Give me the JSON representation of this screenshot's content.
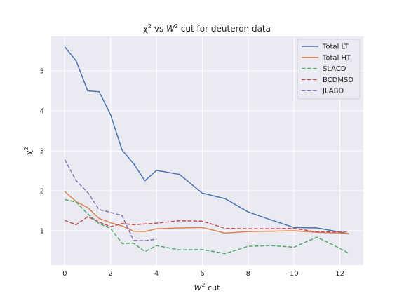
{
  "chart_data": {
    "type": "line",
    "title_parts": [
      "χ",
      "2",
      " vs ",
      "W",
      "2",
      " cut for deuteron data"
    ],
    "xlabel_parts": [
      "W",
      "2",
      " cut"
    ],
    "ylabel_parts": [
      "χ",
      "2"
    ],
    "xlim": [
      -0.62,
      13.02
    ],
    "ylim": [
      0.14,
      5.86
    ],
    "xticks": [
      0,
      2,
      4,
      6,
      8,
      10,
      12
    ],
    "yticks": [
      1,
      2,
      3,
      4,
      5
    ],
    "grid": true,
    "legend_position": "top-right",
    "series": [
      {
        "name": "Total LT",
        "color": "#4c72b0",
        "dash": "solid",
        "x": [
          0,
          0.5,
          1,
          1.5,
          2,
          2.5,
          3,
          3.5,
          4,
          5,
          6,
          7,
          8,
          9,
          10,
          11,
          12,
          12.4
        ],
        "y": [
          5.6,
          5.25,
          4.5,
          4.48,
          3.9,
          3.02,
          2.68,
          2.25,
          2.51,
          2.41,
          1.94,
          1.8,
          1.47,
          1.27,
          1.08,
          1.07,
          0.97,
          0.92
        ]
      },
      {
        "name": "Total HT",
        "color": "#dd8452",
        "dash": "solid",
        "x": [
          0,
          0.5,
          1,
          1.5,
          2,
          2.5,
          3,
          3.5,
          4,
          5,
          6,
          7,
          8,
          9,
          10,
          11,
          12,
          12.4
        ],
        "y": [
          1.98,
          1.73,
          1.58,
          1.31,
          1.2,
          1.12,
          0.99,
          0.98,
          1.05,
          1.07,
          1.08,
          0.94,
          0.98,
          0.99,
          1.0,
          0.96,
          0.94,
          0.92
        ]
      },
      {
        "name": "SLACD",
        "color": "#55a868",
        "dash": "dashed",
        "x": [
          0,
          0.5,
          1,
          1.5,
          2,
          2.5,
          3,
          3.5,
          4,
          5,
          6,
          7,
          8,
          9,
          10,
          11,
          12,
          12.4
        ],
        "y": [
          1.78,
          1.72,
          1.42,
          1.18,
          1.06,
          0.68,
          0.69,
          0.48,
          0.63,
          0.52,
          0.53,
          0.43,
          0.61,
          0.63,
          0.59,
          0.84,
          0.56,
          0.43
        ]
      },
      {
        "name": "BCDMSD",
        "color": "#c44e52",
        "dash": "dashed",
        "x": [
          0,
          0.5,
          1,
          1.5,
          2,
          2.5,
          3,
          3.5,
          4,
          5,
          6,
          7,
          8,
          9,
          10,
          11,
          12,
          12.4
        ],
        "y": [
          1.26,
          1.15,
          1.35,
          1.22,
          1.1,
          1.18,
          1.15,
          1.17,
          1.19,
          1.25,
          1.24,
          1.06,
          1.05,
          1.05,
          1.06,
          0.97,
          0.97,
          0.99
        ]
      },
      {
        "name": "JLABD",
        "color": "#8172b2",
        "dash": "dashed",
        "x": [
          0,
          0.5,
          1,
          1.5,
          2,
          2.5,
          3,
          3.5,
          4
        ],
        "y": [
          2.78,
          2.25,
          1.96,
          1.53,
          1.46,
          1.38,
          0.76,
          0.75,
          0.79
        ]
      }
    ]
  }
}
